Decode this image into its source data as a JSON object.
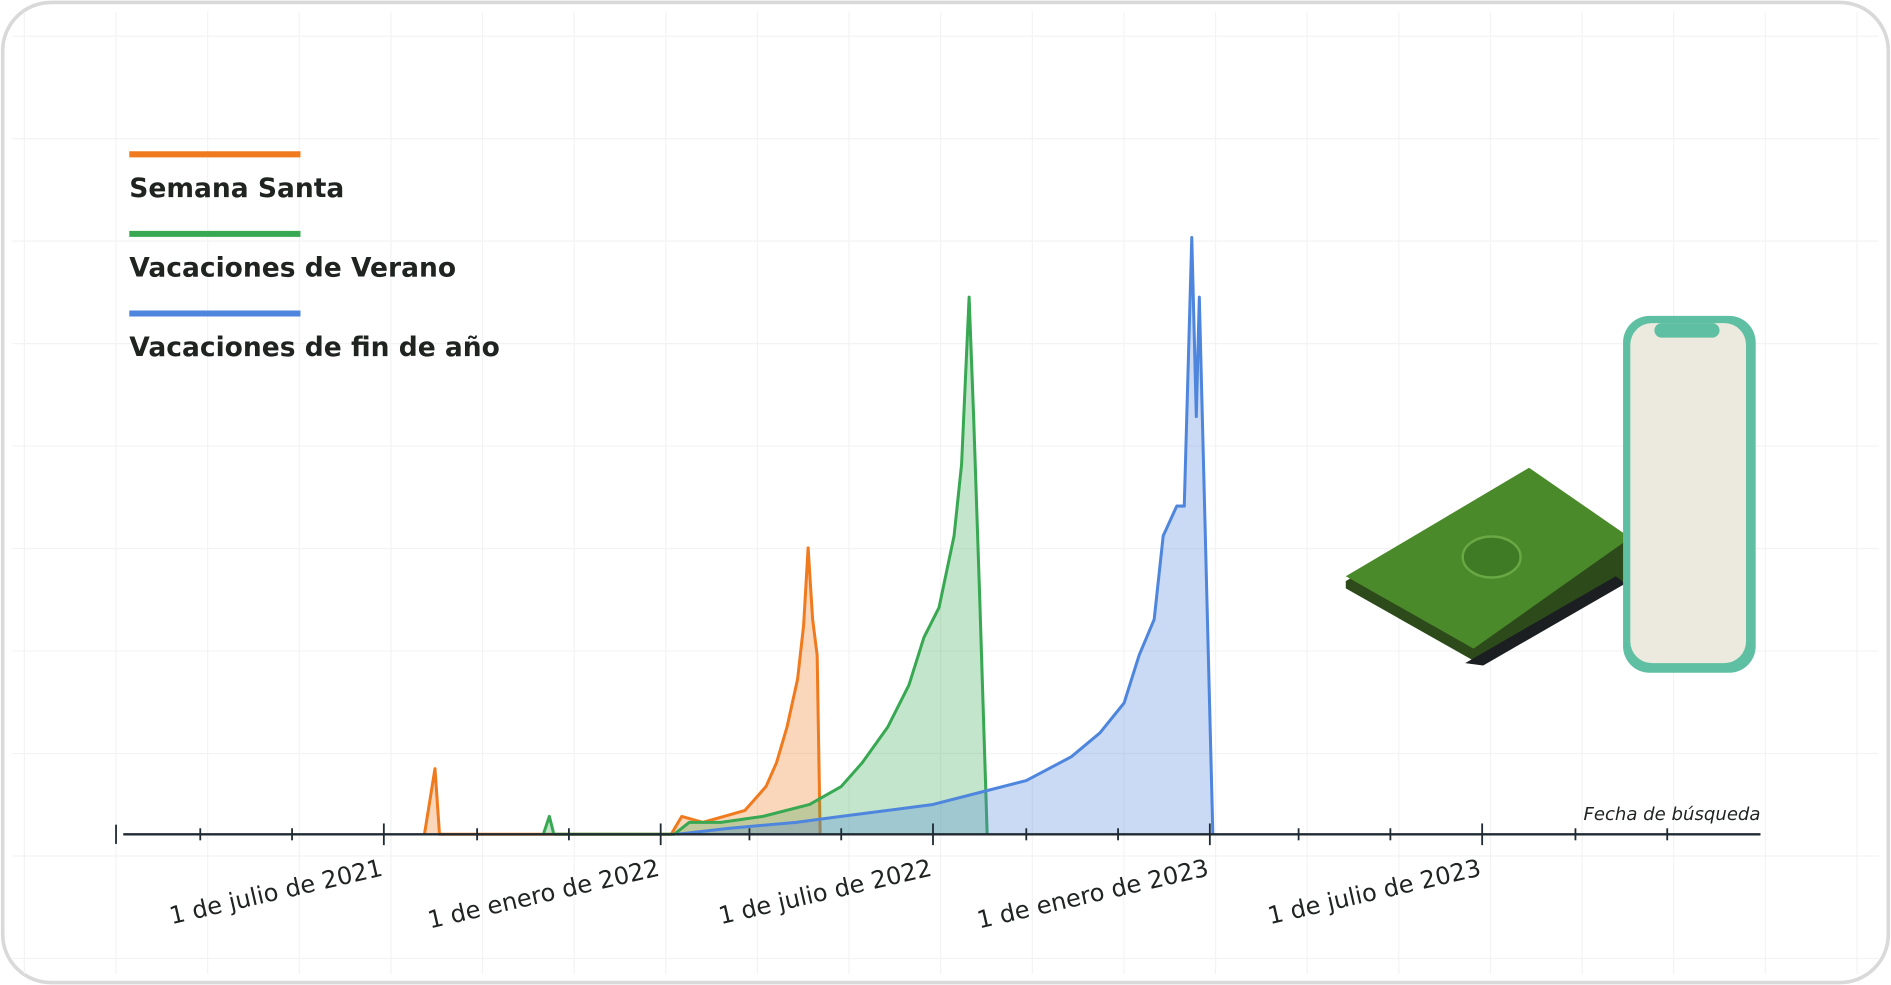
{
  "chart_data": {
    "type": "area",
    "x_label": "Fecha de búsqueda",
    "xlim": [
      "2021-01-04",
      "2024-01-02"
    ],
    "ylim": [
      0,
      100
    ],
    "xticks": [
      {
        "value": "2021-07-01",
        "label": "1 de julio de 2021"
      },
      {
        "value": "2022-01-01",
        "label": "1 de enero de 2022"
      },
      {
        "value": "2022-07-01",
        "label": "1 de julio de 2022"
      },
      {
        "value": "2023-01-01",
        "label": "1 de enero de 2023"
      },
      {
        "value": "2023-07-01",
        "label": "1 de julio de 2023"
      }
    ],
    "xminorticks": [
      "2021-03-01",
      "2021-05-01",
      "2021-09-01",
      "2021-11-01",
      "2022-03-01",
      "2022-05-01",
      "2022-09-01",
      "2022-11-01",
      "2023-03-01",
      "2023-05-01",
      "2023-09-01",
      "2023-11-01"
    ],
    "legend": "top-left",
    "series": [
      {
        "name": "Semana Santa",
        "color": "#f07a1e",
        "x": [
          "2021-07-28",
          "2021-08-04",
          "2021-08-07",
          "2022-01-08",
          "2022-01-15",
          "2022-01-29",
          "2022-02-12",
          "2022-02-26",
          "2022-03-05",
          "2022-03-12",
          "2022-03-19",
          "2022-03-26",
          "2022-04-02",
          "2022-04-06",
          "2022-04-09",
          "2022-04-12",
          "2022-04-15",
          "2022-04-17"
        ],
        "values": [
          0,
          11,
          0,
          0,
          3,
          2,
          3,
          4,
          6,
          8,
          12,
          18,
          26,
          35,
          48,
          36,
          30,
          0
        ]
      },
      {
        "name": "Vacaciones de Verano",
        "color": "#38a852",
        "x": [
          "2021-10-15",
          "2021-10-19",
          "2021-10-22",
          "2022-01-10",
          "2022-01-20",
          "2022-02-10",
          "2022-03-10",
          "2022-04-10",
          "2022-05-01",
          "2022-05-15",
          "2022-06-01",
          "2022-06-15",
          "2022-06-25",
          "2022-07-05",
          "2022-07-15",
          "2022-07-20",
          "2022-07-25",
          "2022-07-28",
          "2022-08-01",
          "2022-08-06"
        ],
        "values": [
          0,
          3,
          0,
          0,
          2,
          2,
          3,
          5,
          8,
          12,
          18,
          25,
          33,
          38,
          50,
          62,
          90,
          70,
          40,
          0
        ]
      },
      {
        "name": "Vacaciones de fin de año",
        "color": "#4f86dd",
        "x": [
          "2022-01-12",
          "2022-02-15",
          "2022-04-01",
          "2022-05-01",
          "2022-06-01",
          "2022-07-01",
          "2022-08-01",
          "2022-09-01",
          "2022-10-01",
          "2022-10-20",
          "2022-11-05",
          "2022-11-15",
          "2022-11-25",
          "2022-12-01",
          "2022-12-10",
          "2022-12-15",
          "2022-12-20",
          "2022-12-23",
          "2022-12-25",
          "2022-12-28",
          "2023-01-03"
        ],
        "values": [
          0,
          1,
          2,
          3,
          4,
          5,
          7,
          9,
          13,
          17,
          22,
          30,
          36,
          50,
          55,
          55,
          100,
          70,
          90,
          60,
          0
        ]
      }
    ]
  }
}
